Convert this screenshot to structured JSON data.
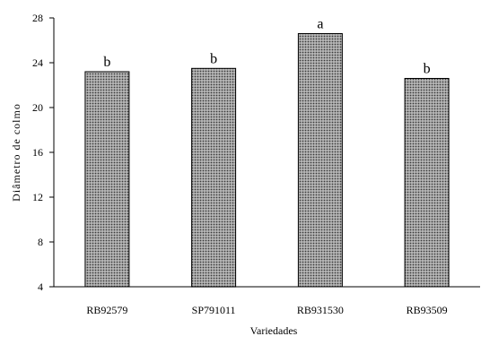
{
  "chart_data": {
    "type": "bar",
    "categories": [
      "RB92579",
      "SP791011",
      "RB931530",
      "RB93509"
    ],
    "values": [
      23.2,
      23.5,
      26.6,
      22.6
    ],
    "significance_letters": [
      "b",
      "b",
      "a",
      "b"
    ],
    "xlabel": "Variedades",
    "ylabel": "Diâmetro de colmo",
    "ylim": [
      4,
      28
    ],
    "yticks": [
      4,
      8,
      12,
      16,
      20,
      24,
      28
    ],
    "grid": false,
    "bar_fill": "#b8b8b8",
    "bar_pattern_dot": "#3a3a3a"
  }
}
